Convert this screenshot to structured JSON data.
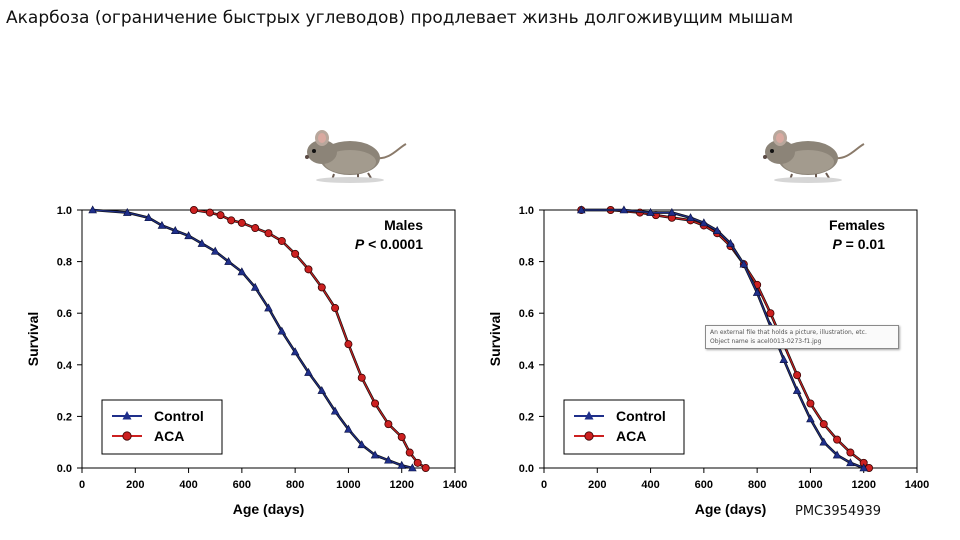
{
  "slide": {
    "title": "Акарбоза (ограничение быстрых углеводов) продлевает жизнь долгоживущим мышам",
    "source_id": "PMC3954939",
    "tooltip_line1": "An external file that holds a picture, illustration, etc.",
    "tooltip_line2": "Object name is acel0013-0273-f1.jpg"
  },
  "icons": [
    "mouse-icon",
    "mouse-icon"
  ],
  "colors": {
    "control": "#1f2f8a",
    "aca": "#cc2020",
    "marker_edge": "#3a0000",
    "axis": "#000000"
  },
  "chart_data": [
    {
      "type": "line",
      "xlabel": "Age (days)",
      "ylabel": "Survival",
      "xlim": [
        0,
        1400
      ],
      "ylim": [
        0,
        1.0
      ],
      "xticks": [
        "0",
        "200",
        "400",
        "600",
        "800",
        "1000",
        "1200",
        "1400"
      ],
      "yticks": [
        "0.0",
        "0.2",
        "0.4",
        "0.6",
        "0.8",
        "1.0"
      ],
      "annotation_title": "Males",
      "annotation_p_letter": "P",
      "annotation_p_value": " < 0.0001",
      "legend_position": "bottom-left",
      "series": [
        {
          "name": "Control",
          "marker": "triangle",
          "x": [
            40,
            170,
            250,
            300,
            350,
            400,
            450,
            500,
            550,
            600,
            650,
            700,
            750,
            800,
            850,
            900,
            950,
            1000,
            1050,
            1100,
            1150,
            1200,
            1240
          ],
          "y": [
            1.0,
            0.99,
            0.97,
            0.94,
            0.92,
            0.9,
            0.87,
            0.84,
            0.8,
            0.76,
            0.7,
            0.62,
            0.53,
            0.45,
            0.37,
            0.3,
            0.22,
            0.15,
            0.09,
            0.05,
            0.03,
            0.01,
            0.0
          ]
        },
        {
          "name": "ACA",
          "marker": "circle",
          "x": [
            420,
            480,
            520,
            560,
            600,
            650,
            700,
            750,
            800,
            850,
            900,
            950,
            1000,
            1050,
            1100,
            1150,
            1200,
            1230,
            1260,
            1290
          ],
          "y": [
            1.0,
            0.99,
            0.98,
            0.96,
            0.95,
            0.93,
            0.91,
            0.88,
            0.83,
            0.77,
            0.7,
            0.62,
            0.48,
            0.35,
            0.25,
            0.17,
            0.12,
            0.06,
            0.02,
            0.0
          ]
        }
      ]
    },
    {
      "type": "line",
      "xlabel": "Age (days)",
      "ylabel": "Survival",
      "xlim": [
        0,
        1400
      ],
      "ylim": [
        0,
        1.0
      ],
      "xticks": [
        "0",
        "200",
        "400",
        "600",
        "800",
        "1000",
        "1200",
        "1400"
      ],
      "yticks": [
        "0.0",
        "0.2",
        "0.4",
        "0.6",
        "0.8",
        "1.0"
      ],
      "annotation_title": "Females",
      "annotation_p_letter": "P",
      "annotation_p_value": " = 0.01",
      "legend_position": "bottom-left",
      "series": [
        {
          "name": "Control",
          "marker": "triangle",
          "x": [
            140,
            300,
            400,
            480,
            550,
            600,
            650,
            700,
            750,
            800,
            850,
            900,
            950,
            1000,
            1050,
            1100,
            1150,
            1200
          ],
          "y": [
            1.0,
            1.0,
            0.99,
            0.99,
            0.97,
            0.95,
            0.92,
            0.87,
            0.79,
            0.68,
            0.55,
            0.42,
            0.3,
            0.19,
            0.1,
            0.05,
            0.02,
            0.0
          ]
        },
        {
          "name": "ACA",
          "marker": "circle",
          "x": [
            140,
            250,
            360,
            420,
            480,
            550,
            600,
            650,
            700,
            750,
            800,
            850,
            900,
            950,
            1000,
            1050,
            1100,
            1150,
            1200,
            1220
          ],
          "y": [
            1.0,
            1.0,
            0.99,
            0.98,
            0.97,
            0.96,
            0.94,
            0.91,
            0.86,
            0.79,
            0.71,
            0.6,
            0.48,
            0.36,
            0.25,
            0.17,
            0.11,
            0.06,
            0.02,
            0.0
          ]
        }
      ]
    }
  ]
}
